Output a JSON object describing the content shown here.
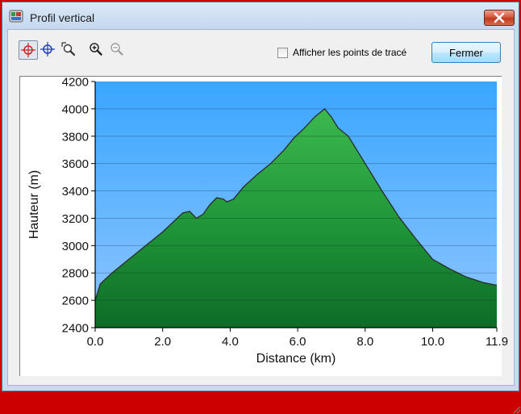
{
  "window": {
    "title": "Profil vertical"
  },
  "toolbar": {
    "tools": [
      {
        "icon": "crosshair-red-icon",
        "active": true
      },
      {
        "icon": "crosshair-blue-icon",
        "active": false
      },
      {
        "icon": "zoom-area-icon",
        "active": false
      },
      {
        "icon": "zoom-in-icon",
        "active": false
      },
      {
        "icon": "zoom-out-icon",
        "active": false
      }
    ],
    "show_points_label": "Afficher les points de tracé",
    "show_points_checked": false,
    "close_label": "Fermer"
  },
  "colors": {
    "sky_top": "#3aa6ff",
    "sky_bottom": "#8fc6ff",
    "fill_top": "#3cb84e",
    "fill_bottom": "#0e6b26",
    "line": "#2a2a2a"
  },
  "chart_data": {
    "type": "area",
    "title": "",
    "xlabel": "Distance   (km)",
    "ylabel": "Hauteur (m)",
    "xlim": [
      0.0,
      11.9
    ],
    "ylim": [
      2400,
      4200
    ],
    "xticks": [
      "0.0",
      "2.0",
      "4.0",
      "6.0",
      "8.0",
      "10.0",
      "11.9"
    ],
    "yticks": [
      "4200",
      "4000",
      "3800",
      "3600",
      "3400",
      "3200",
      "3000",
      "2800",
      "2600",
      "2400"
    ],
    "grid": true,
    "series": [
      {
        "x": [
          0.0,
          0.15,
          0.5,
          1.0,
          1.5,
          2.0,
          2.3,
          2.6,
          2.8,
          3.0,
          3.2,
          3.4,
          3.6,
          3.8,
          3.9,
          4.1,
          4.4,
          4.8,
          5.2,
          5.6,
          5.9,
          6.2,
          6.5,
          6.8,
          7.0,
          7.2,
          7.5,
          8.0,
          8.5,
          9.0,
          9.5,
          10.0,
          10.5,
          11.0,
          11.5,
          11.9
        ],
        "y": [
          2600,
          2720,
          2800,
          2900,
          3000,
          3100,
          3170,
          3240,
          3250,
          3200,
          3230,
          3300,
          3350,
          3340,
          3320,
          3340,
          3430,
          3520,
          3600,
          3700,
          3790,
          3860,
          3940,
          4000,
          3940,
          3860,
          3800,
          3600,
          3400,
          3210,
          3050,
          2900,
          2830,
          2770,
          2730,
          2710
        ]
      }
    ]
  }
}
